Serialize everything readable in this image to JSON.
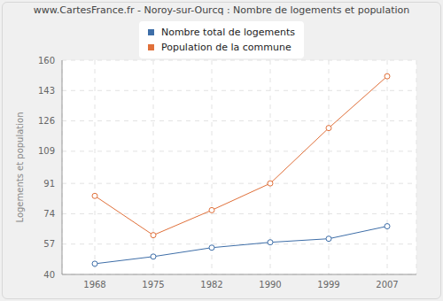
{
  "chart_data": {
    "type": "line",
    "title": "www.CartesFrance.fr - Noroy-sur-Ourcq : Nombre de logements et population",
    "y_label": "Logements et population",
    "categories": [
      "1968",
      "1975",
      "1982",
      "1990",
      "1999",
      "2007"
    ],
    "series": [
      {
        "name": "Nombre total de logements",
        "color": "#3e6ea8",
        "marker": "circle",
        "values": [
          46,
          50,
          55,
          58,
          60,
          67
        ]
      },
      {
        "name": "Population de la commune",
        "color": "#e0703a",
        "marker": "circle",
        "values": [
          84,
          62,
          76,
          91,
          122,
          151
        ]
      }
    ],
    "ylim": [
      40,
      160
    ],
    "yticks": [
      40,
      57,
      74,
      91,
      109,
      126,
      143,
      160
    ],
    "grid": true,
    "legend": "top"
  }
}
